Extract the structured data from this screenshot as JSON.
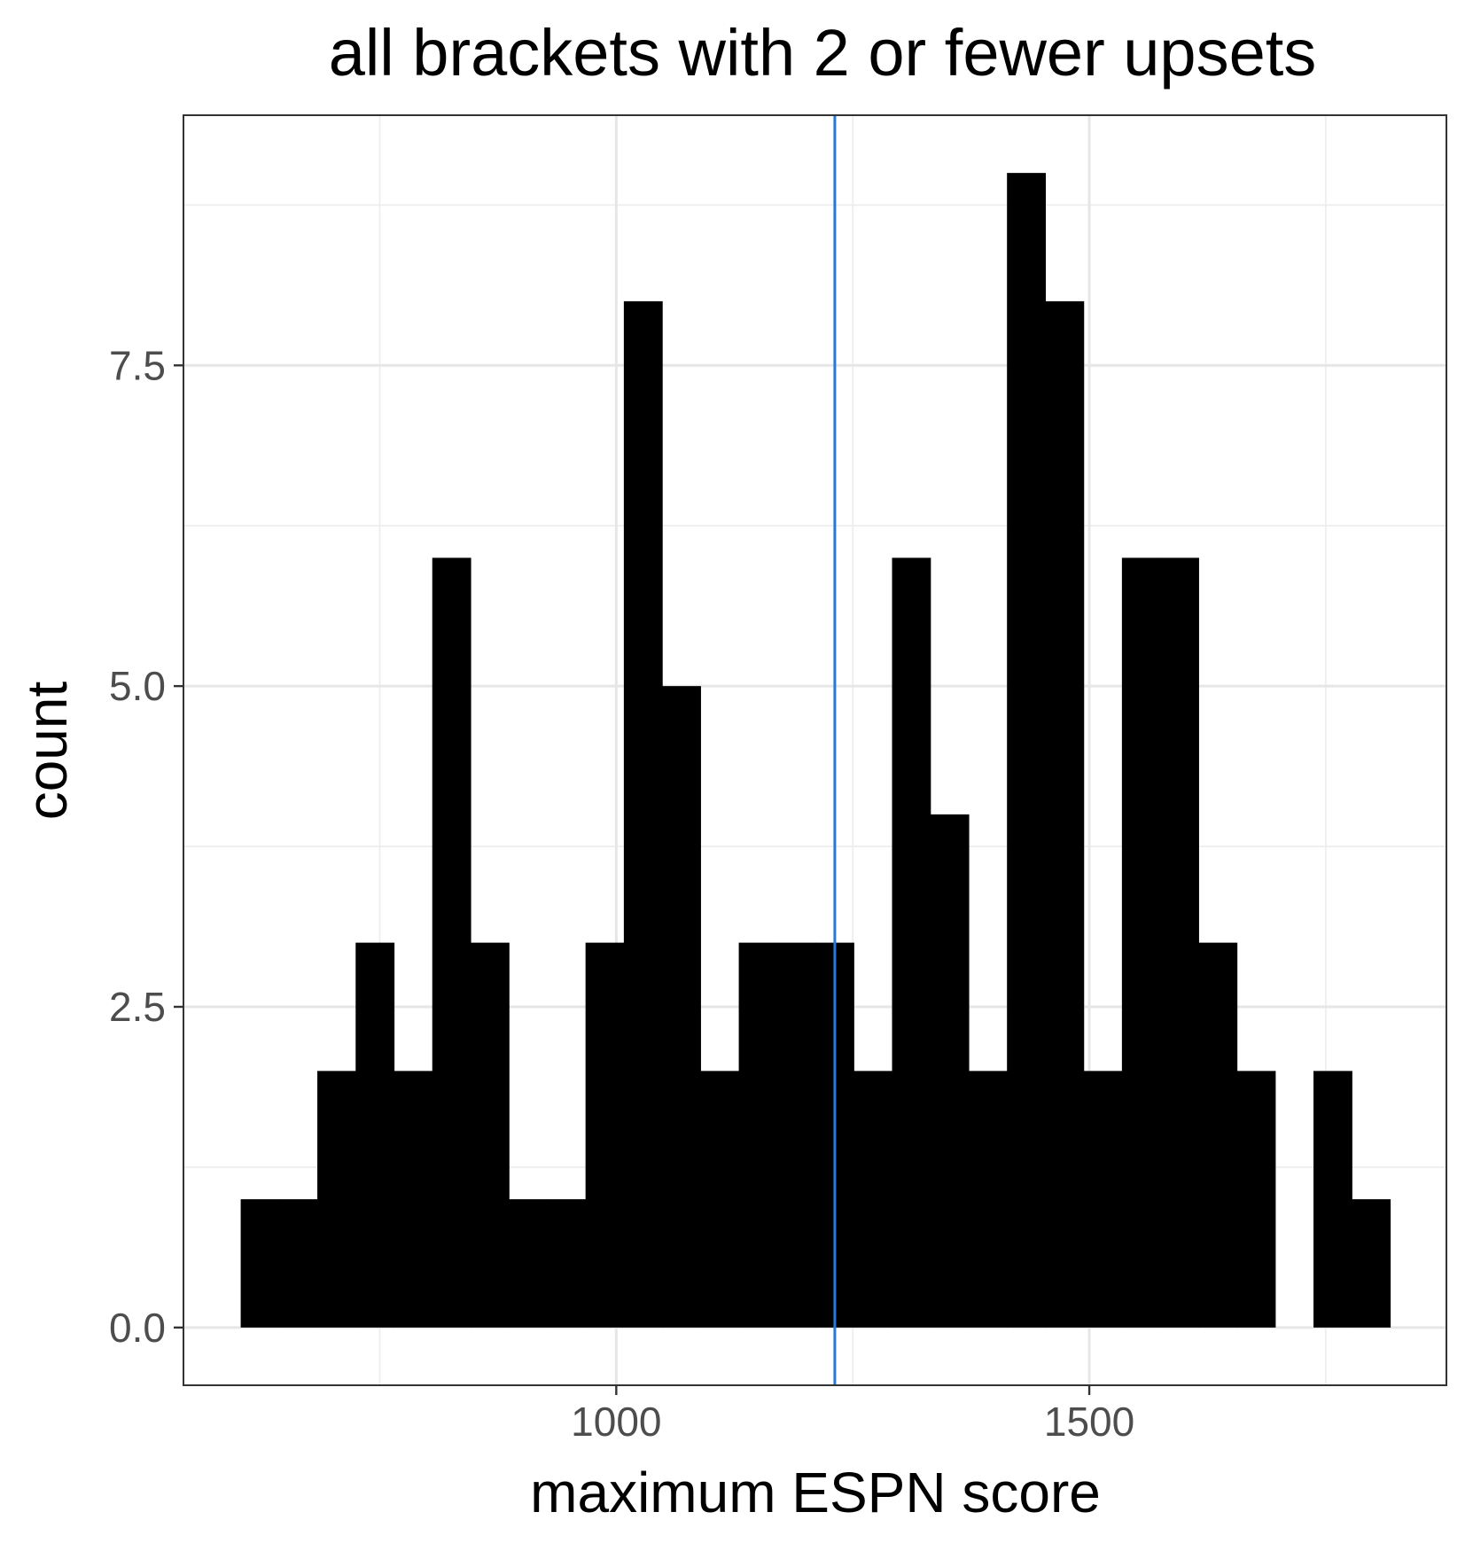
{
  "chart_data": {
    "type": "bar",
    "title": "all brackets with 2 or fewer upsets",
    "xlabel": "maximum ESPN score",
    "ylabel": "count",
    "xlim": [
      542.5,
      1877.5
    ],
    "ylim": [
      -0.45,
      9.45
    ],
    "x_ticks": [
      1000,
      1500
    ],
    "x_tick_labels": [
      "1000",
      "1500"
    ],
    "x_minor_gridlines": [
      750,
      1250,
      1750
    ],
    "y_ticks": [
      0,
      2.5,
      5,
      7.5
    ],
    "y_tick_labels": [
      "0.0",
      "2.5",
      "5.0",
      "7.5"
    ],
    "y_minor_gridlines": [
      1.25,
      3.75,
      6.25,
      8.75
    ],
    "grid": true,
    "bin_width": 40.5,
    "bins": [
      {
        "x_start": 603,
        "count": 1
      },
      {
        "x_start": 643.5,
        "count": 1
      },
      {
        "x_start": 684,
        "count": 2
      },
      {
        "x_start": 724.5,
        "count": 3
      },
      {
        "x_start": 765,
        "count": 2
      },
      {
        "x_start": 805.5,
        "count": 6
      },
      {
        "x_start": 846,
        "count": 3
      },
      {
        "x_start": 886.5,
        "count": 1
      },
      {
        "x_start": 927,
        "count": 1
      },
      {
        "x_start": 967.5,
        "count": 3
      },
      {
        "x_start": 1008,
        "count": 8
      },
      {
        "x_start": 1048.5,
        "count": 5
      },
      {
        "x_start": 1089,
        "count": 2
      },
      {
        "x_start": 1129.5,
        "count": 3
      },
      {
        "x_start": 1170,
        "count": 3
      },
      {
        "x_start": 1210.5,
        "count": 3
      },
      {
        "x_start": 1251,
        "count": 2
      },
      {
        "x_start": 1291.5,
        "count": 6
      },
      {
        "x_start": 1332,
        "count": 4
      },
      {
        "x_start": 1372.5,
        "count": 2
      },
      {
        "x_start": 1413,
        "count": 9
      },
      {
        "x_start": 1453.5,
        "count": 8
      },
      {
        "x_start": 1494,
        "count": 2
      },
      {
        "x_start": 1534.5,
        "count": 6
      },
      {
        "x_start": 1575,
        "count": 6
      },
      {
        "x_start": 1615.5,
        "count": 3
      },
      {
        "x_start": 1656,
        "count": 2
      },
      {
        "x_start": 1696.5,
        "count": 0
      },
      {
        "x_start": 1737,
        "count": 2
      },
      {
        "x_start": 1777.5,
        "count": 1
      }
    ],
    "vline": {
      "x": 1231,
      "color": "#2a78d6"
    },
    "bar_color": "#000000"
  }
}
